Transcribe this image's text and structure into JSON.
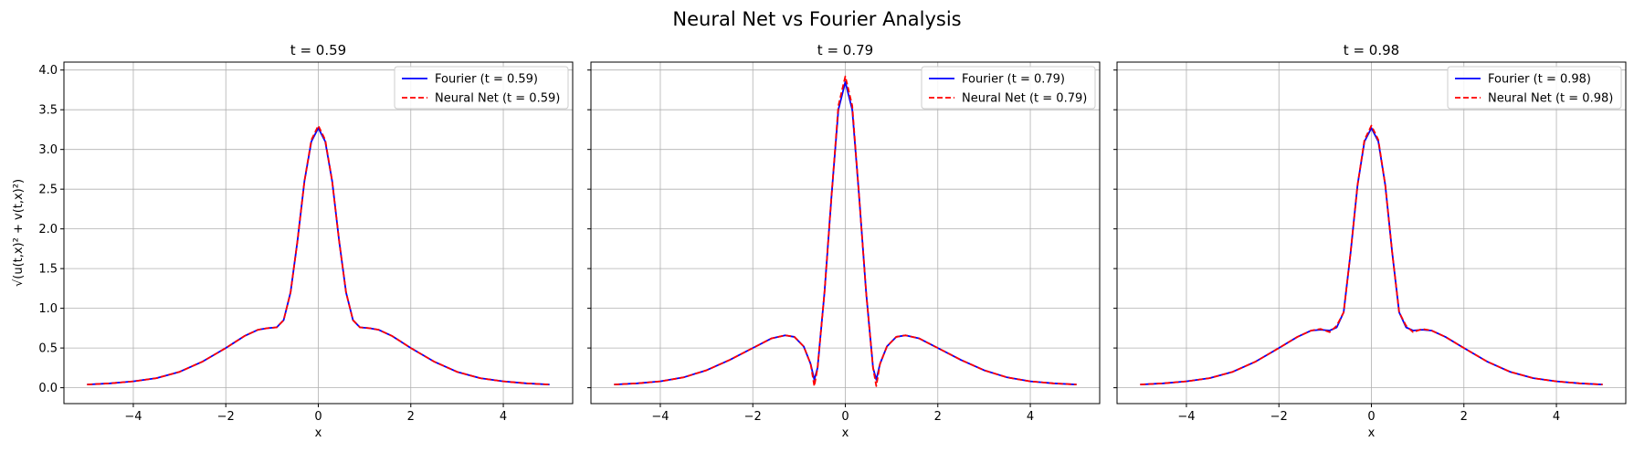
{
  "figure": {
    "suptitle": "Neural Net vs Fourier Analysis"
  },
  "chart_data": [
    {
      "type": "line",
      "title": "t = 0.59",
      "xlabel": "x",
      "ylabel": "√(u(t,x)² + v(t,x)²)",
      "xlim": [
        -5.5,
        5.5
      ],
      "ylim": [
        -0.2,
        4.1
      ],
      "xticks": [
        -4,
        -2,
        0,
        2,
        4
      ],
      "xtick_labels": [
        "−4",
        "−2",
        "0",
        "2",
        "4"
      ],
      "yticks": [
        0.0,
        0.5,
        1.0,
        1.5,
        2.0,
        2.5,
        3.0,
        3.5,
        4.0
      ],
      "ytick_labels": [
        "0.0",
        "0.5",
        "1.0",
        "1.5",
        "2.0",
        "2.5",
        "3.0",
        "3.5",
        "4.0"
      ],
      "grid": true,
      "legend_position": "upper right",
      "series": [
        {
          "name": "Fourier (t = 0.59)",
          "color": "#0000ff",
          "style": "solid",
          "x": [
            -5,
            -4.5,
            -4,
            -3.5,
            -3,
            -2.5,
            -2,
            -1.6,
            -1.3,
            -1.1,
            -0.9,
            -0.75,
            -0.6,
            -0.45,
            -0.3,
            -0.15,
            0,
            0.15,
            0.3,
            0.45,
            0.6,
            0.75,
            0.9,
            1.1,
            1.3,
            1.6,
            2,
            2.5,
            3,
            3.5,
            4,
            4.5,
            5
          ],
          "y": [
            0.04,
            0.055,
            0.08,
            0.12,
            0.2,
            0.33,
            0.5,
            0.65,
            0.73,
            0.75,
            0.76,
            0.85,
            1.2,
            1.85,
            2.6,
            3.1,
            3.27,
            3.1,
            2.6,
            1.85,
            1.2,
            0.85,
            0.76,
            0.75,
            0.73,
            0.65,
            0.5,
            0.33,
            0.2,
            0.12,
            0.08,
            0.055,
            0.04
          ]
        },
        {
          "name": "Neural Net (t = 0.59)",
          "color": "#ff0000",
          "style": "dashed",
          "x": [
            -5,
            -4.5,
            -4,
            -3.5,
            -3,
            -2.5,
            -2,
            -1.6,
            -1.3,
            -1.1,
            -0.9,
            -0.75,
            -0.6,
            -0.45,
            -0.3,
            -0.15,
            0,
            0.15,
            0.3,
            0.45,
            0.6,
            0.75,
            0.9,
            1.1,
            1.3,
            1.6,
            2,
            2.5,
            3,
            3.5,
            4,
            4.5,
            5
          ],
          "y": [
            0.04,
            0.055,
            0.08,
            0.12,
            0.2,
            0.33,
            0.5,
            0.65,
            0.73,
            0.75,
            0.76,
            0.85,
            1.2,
            1.85,
            2.6,
            3.12,
            3.3,
            3.12,
            2.6,
            1.85,
            1.2,
            0.85,
            0.76,
            0.75,
            0.73,
            0.65,
            0.5,
            0.33,
            0.2,
            0.12,
            0.08,
            0.055,
            0.04
          ]
        }
      ]
    },
    {
      "type": "line",
      "title": "t = 0.79",
      "xlabel": "x",
      "ylabel": "",
      "xlim": [
        -5.5,
        5.5
      ],
      "ylim": [
        -0.2,
        4.1
      ],
      "xticks": [
        -4,
        -2,
        0,
        2,
        4
      ],
      "xtick_labels": [
        "−4",
        "−2",
        "0",
        "2",
        "4"
      ],
      "yticks": [
        0.0,
        0.5,
        1.0,
        1.5,
        2.0,
        2.5,
        3.0,
        3.5,
        4.0
      ],
      "ytick_labels": [],
      "grid": true,
      "legend_position": "upper right",
      "series": [
        {
          "name": "Fourier (t = 0.79)",
          "color": "#0000ff",
          "style": "solid",
          "x": [
            -5,
            -4.5,
            -4,
            -3.5,
            -3,
            -2.5,
            -2,
            -1.6,
            -1.3,
            -1.1,
            -0.9,
            -0.75,
            -0.67,
            -0.6,
            -0.45,
            -0.3,
            -0.15,
            0,
            0.15,
            0.3,
            0.45,
            0.6,
            0.67,
            0.75,
            0.9,
            1.1,
            1.3,
            1.6,
            2,
            2.5,
            3,
            3.5,
            4,
            4.5,
            5
          ],
          "y": [
            0.04,
            0.055,
            0.08,
            0.13,
            0.22,
            0.35,
            0.5,
            0.62,
            0.66,
            0.64,
            0.52,
            0.3,
            0.1,
            0.25,
            1.2,
            2.4,
            3.5,
            3.85,
            3.5,
            2.4,
            1.2,
            0.25,
            0.1,
            0.3,
            0.52,
            0.64,
            0.66,
            0.62,
            0.5,
            0.35,
            0.22,
            0.13,
            0.08,
            0.055,
            0.04
          ]
        },
        {
          "name": "Neural Net (t = 0.79)",
          "color": "#ff0000",
          "style": "dashed",
          "x": [
            -5,
            -4.5,
            -4,
            -3.5,
            -3,
            -2.5,
            -2,
            -1.6,
            -1.3,
            -1.1,
            -0.9,
            -0.75,
            -0.67,
            -0.6,
            -0.45,
            -0.3,
            -0.15,
            0,
            0.15,
            0.3,
            0.45,
            0.6,
            0.67,
            0.75,
            0.9,
            1.1,
            1.3,
            1.6,
            2,
            2.5,
            3,
            3.5,
            4,
            4.5,
            5
          ],
          "y": [
            0.04,
            0.055,
            0.08,
            0.13,
            0.22,
            0.35,
            0.5,
            0.62,
            0.66,
            0.64,
            0.52,
            0.3,
            0.02,
            0.25,
            1.2,
            2.4,
            3.55,
            3.92,
            3.55,
            2.4,
            1.2,
            0.25,
            0.02,
            0.3,
            0.52,
            0.64,
            0.66,
            0.62,
            0.5,
            0.35,
            0.22,
            0.13,
            0.08,
            0.055,
            0.04
          ]
        }
      ]
    },
    {
      "type": "line",
      "title": "t = 0.98",
      "xlabel": "x",
      "ylabel": "",
      "xlim": [
        -5.5,
        5.5
      ],
      "ylim": [
        -0.2,
        4.1
      ],
      "xticks": [
        -4,
        -2,
        0,
        2,
        4
      ],
      "xtick_labels": [
        "−4",
        "−2",
        "0",
        "2",
        "4"
      ],
      "yticks": [
        0.0,
        0.5,
        1.0,
        1.5,
        2.0,
        2.5,
        3.0,
        3.5,
        4.0
      ],
      "ytick_labels": [],
      "grid": true,
      "legend_position": "upper right",
      "series": [
        {
          "name": "Fourier (t = 0.98)",
          "color": "#0000ff",
          "style": "solid",
          "x": [
            -5,
            -4.5,
            -4,
            -3.5,
            -3,
            -2.5,
            -2,
            -1.6,
            -1.3,
            -1.1,
            -0.9,
            -0.75,
            -0.6,
            -0.45,
            -0.3,
            -0.15,
            0,
            0.15,
            0.3,
            0.45,
            0.6,
            0.75,
            0.9,
            1.1,
            1.3,
            1.6,
            2,
            2.5,
            3,
            3.5,
            4,
            4.5,
            5
          ],
          "y": [
            0.04,
            0.055,
            0.08,
            0.12,
            0.2,
            0.33,
            0.5,
            0.64,
            0.72,
            0.73,
            0.72,
            0.76,
            0.95,
            1.7,
            2.55,
            3.1,
            3.27,
            3.1,
            2.55,
            1.7,
            0.95,
            0.76,
            0.72,
            0.73,
            0.72,
            0.64,
            0.5,
            0.33,
            0.2,
            0.12,
            0.08,
            0.055,
            0.04
          ]
        },
        {
          "name": "Neural Net (t = 0.98)",
          "color": "#ff0000",
          "style": "dashed",
          "x": [
            -5,
            -4.5,
            -4,
            -3.5,
            -3,
            -2.5,
            -2,
            -1.6,
            -1.3,
            -1.1,
            -0.9,
            -0.75,
            -0.6,
            -0.45,
            -0.3,
            -0.15,
            0,
            0.15,
            0.3,
            0.45,
            0.6,
            0.75,
            0.9,
            1.1,
            1.3,
            1.6,
            2,
            2.5,
            3,
            3.5,
            4,
            4.5,
            5
          ],
          "y": [
            0.04,
            0.055,
            0.08,
            0.12,
            0.2,
            0.33,
            0.5,
            0.64,
            0.72,
            0.74,
            0.7,
            0.78,
            0.95,
            1.7,
            2.55,
            3.12,
            3.3,
            3.12,
            2.55,
            1.7,
            0.95,
            0.78,
            0.7,
            0.74,
            0.72,
            0.64,
            0.5,
            0.33,
            0.2,
            0.12,
            0.08,
            0.055,
            0.04
          ]
        }
      ]
    }
  ]
}
